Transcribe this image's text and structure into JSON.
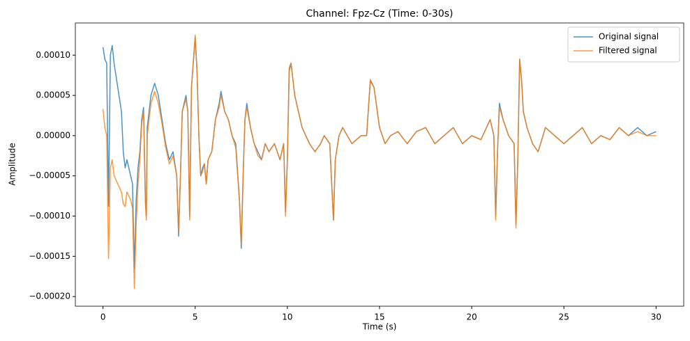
{
  "chart_data": {
    "type": "line",
    "title": "Channel: Fpz-Cz (Time: 0-30s)",
    "x_label": "Time (s)",
    "y_label": "Amplitude",
    "x": [
      0,
      0.1,
      0.2,
      0.3,
      0.4,
      0.5,
      0.6,
      0.8,
      1.0,
      1.1,
      1.2,
      1.3,
      1.5,
      1.6,
      1.7,
      1.8,
      1.9,
      2.0,
      2.1,
      2.2,
      2.3,
      2.35,
      2.4,
      2.5,
      2.6,
      2.8,
      3.0,
      3.2,
      3.4,
      3.6,
      3.8,
      4.0,
      4.1,
      4.2,
      4.3,
      4.5,
      4.6,
      4.7,
      4.8,
      5.0,
      5.1,
      5.2,
      5.3,
      5.4,
      5.5,
      5.6,
      5.7,
      5.9,
      6.0,
      6.1,
      6.3,
      6.4,
      6.6,
      6.8,
      7.0,
      7.2,
      7.4,
      7.5,
      7.6,
      7.7,
      7.8,
      8.0,
      8.2,
      8.4,
      8.6,
      8.8,
      9.0,
      9.3,
      9.6,
      9.8,
      9.9,
      10.0,
      10.1,
      10.2,
      10.4,
      10.6,
      10.8,
      11.0,
      11.2,
      11.5,
      11.8,
      12.0,
      12.3,
      12.5,
      12.6,
      12.8,
      13.0,
      13.5,
      14.0,
      14.3,
      14.5,
      14.7,
      15.0,
      15.3,
      15.6,
      16.0,
      16.5,
      17.0,
      17.5,
      18.0,
      18.5,
      19.0,
      19.5,
      20.0,
      20.5,
      21.0,
      21.2,
      21.3,
      21.4,
      21.5,
      21.7,
      22.0,
      22.3,
      22.4,
      22.5,
      22.6,
      22.7,
      22.8,
      23.0,
      23.3,
      23.6,
      24.0,
      24.5,
      25.0,
      25.5,
      26.0,
      26.5,
      27.0,
      27.5,
      28.0,
      28.5,
      29.0,
      29.5,
      30.0
    ],
    "series": [
      {
        "name": "Original signal",
        "color": "#1f77b4",
        "values": [
          0.00011,
          9.5e-05,
          9e-05,
          -8.8e-05,
          0.0001,
          0.000112,
          9e-05,
          6e-05,
          3e-05,
          -2e-05,
          -4e-05,
          -3e-05,
          -5e-05,
          -6e-05,
          -0.000165,
          -8e-05,
          -4e-05,
          -2e-05,
          2e-05,
          3.5e-05,
          -8e-05,
          -0.0001,
          1e-05,
          3e-05,
          5e-05,
          6.5e-05,
          5e-05,
          2e-05,
          -1e-05,
          -3e-05,
          -2e-05,
          -5e-05,
          -0.000125,
          -5e-05,
          3e-05,
          5e-05,
          3e-05,
          -0.0001,
          6e-05,
          0.000122,
          8e-05,
          0,
          -5e-05,
          -4e-05,
          -3.5e-05,
          -6e-05,
          -3e-05,
          -2e-05,
          0,
          2e-05,
          4e-05,
          5.5e-05,
          3e-05,
          2e-05,
          0,
          -1e-05,
          -8e-05,
          -0.00014,
          -5e-05,
          2e-05,
          4e-05,
          1e-05,
          -1e-05,
          -2e-05,
          -3e-05,
          -1e-05,
          -2e-05,
          -1e-05,
          -3e-05,
          -1e-05,
          -9.5e-05,
          -3e-05,
          8e-05,
          9e-05,
          5e-05,
          3e-05,
          1e-05,
          0,
          -1e-05,
          -2e-05,
          -1e-05,
          0,
          -1e-05,
          -0.000105,
          -3e-05,
          0,
          1e-05,
          -1e-05,
          0,
          0,
          6.8e-05,
          6e-05,
          1e-05,
          -1e-05,
          0,
          5e-06,
          -1e-05,
          5e-06,
          1e-05,
          -1e-05,
          0,
          1e-05,
          -1e-05,
          0,
          -5e-06,
          2e-05,
          0,
          -0.0001,
          -2e-05,
          4e-05,
          2e-05,
          0,
          -1e-05,
          -0.00011,
          -3e-05,
          9.5e-05,
          7e-05,
          3e-05,
          1e-05,
          -1e-05,
          -2e-05,
          1e-05,
          0,
          -1e-05,
          0,
          1e-05,
          -1e-05,
          0,
          -5e-06,
          1e-05,
          0,
          1e-05,
          0,
          5e-06
        ]
      },
      {
        "name": "Filtered signal",
        "color": "#ff7f0e",
        "values": [
          3.3e-05,
          1e-05,
          0,
          -0.000153,
          -4e-05,
          -3e-05,
          -5e-05,
          -6e-05,
          -7e-05,
          -8.5e-05,
          -8.8e-05,
          -7e-05,
          -8e-05,
          -9e-05,
          -0.00019,
          -0.00011,
          -6e-05,
          -3e-05,
          1.5e-05,
          3e-05,
          -8.5e-05,
          -0.000105,
          0,
          2e-05,
          4e-05,
          5.5e-05,
          4e-05,
          1.5e-05,
          -1.5e-05,
          -3.5e-05,
          -2.5e-05,
          -5e-05,
          -0.00012,
          -5e-05,
          3e-05,
          4.5e-05,
          3e-05,
          -0.000105,
          6e-05,
          0.000125,
          8e-05,
          0,
          -5e-05,
          -4.5e-05,
          -3.5e-05,
          -6e-05,
          -3e-05,
          -2e-05,
          0,
          2e-05,
          3.5e-05,
          5e-05,
          3e-05,
          2e-05,
          0,
          -1.5e-05,
          -8e-05,
          -0.000135,
          -5e-05,
          2e-05,
          3.5e-05,
          1e-05,
          -1e-05,
          -2.5e-05,
          -3e-05,
          -1e-05,
          -2e-05,
          -1e-05,
          -3e-05,
          -1e-05,
          -0.0001,
          -3e-05,
          8.5e-05,
          9e-05,
          5e-05,
          3e-05,
          1e-05,
          0,
          -1e-05,
          -2e-05,
          -1e-05,
          0,
          -1e-05,
          -0.000105,
          -3e-05,
          0,
          1e-05,
          -1e-05,
          0,
          0,
          7e-05,
          6e-05,
          1e-05,
          -1e-05,
          0,
          5e-06,
          -1e-05,
          5e-06,
          1e-05,
          -1e-05,
          0,
          1e-05,
          -1e-05,
          0,
          -5e-06,
          2e-05,
          0,
          -0.000105,
          -2e-05,
          3.5e-05,
          2e-05,
          0,
          -1e-05,
          -0.000115,
          -3e-05,
          9.5e-05,
          7e-05,
          3e-05,
          1e-05,
          -1e-05,
          -2e-05,
          1e-05,
          0,
          -1e-05,
          0,
          1e-05,
          -1e-05,
          0,
          -5e-06,
          1e-05,
          0,
          5e-06,
          0,
          0
        ]
      }
    ],
    "xlim": [
      -1.5,
      31.5
    ],
    "xticks": [
      0,
      5,
      10,
      15,
      20,
      25,
      30
    ],
    "ylim": [
      -0.000212,
      0.00014
    ],
    "yticks": [
      {
        "value": -0.0002,
        "label": "−0.00020"
      },
      {
        "value": -0.00015,
        "label": "−0.00015"
      },
      {
        "value": -0.0001,
        "label": "−0.00010"
      },
      {
        "value": -5e-05,
        "label": "−0.00005"
      },
      {
        "value": 0,
        "label": "0.00000"
      },
      {
        "value": 5e-05,
        "label": "0.00005"
      },
      {
        "value": 0.0001,
        "label": "0.00010"
      }
    ],
    "legend": "upper right",
    "grid": false
  }
}
